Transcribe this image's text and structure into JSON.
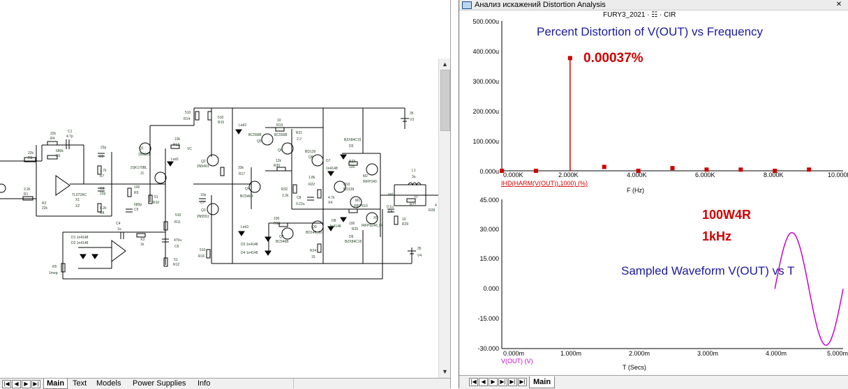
{
  "schematic": {
    "scroll_up_arrow": "▲",
    "scroll_down_arrow": "▼",
    "nav_first": "|◀",
    "nav_prev": "◀",
    "nav_next": "▶",
    "nav_last": "▶|",
    "tabs": [
      "Main",
      "Text",
      "Models",
      "Power Supplies",
      "Info"
    ],
    "labels": {
      "c1": "C1",
      "c1v": "4.7p",
      "r4": "22k",
      "r4n": "R4",
      "r6v": "680k",
      "r6": "R6",
      "r3v": "22k",
      "r3": "R3",
      "r1v": "2.2k",
      "r1": "R1",
      "r2": "R2",
      "r2v": "22k",
      "x1": "X1",
      "x2": "X2",
      "opamp1": "TL072AC",
      "c2": "22p",
      "c2n": "C2",
      "r7v": "2.7k",
      "r7": "R7",
      "c3": "C3",
      "c3v": "22p",
      "r8v": "8.2k",
      "r8": "R8",
      "q1": "Q1",
      "q1v": "2N5551",
      "j1v": "2SK170BL",
      "j1": "J1",
      "r9v": "100",
      "r9": "R9",
      "c5v": "680p",
      "c5": "C5",
      "r10v": "51",
      "r10": "R10",
      "r13v": "10k",
      "r13": "R13",
      "vc1": "VC",
      "led1": "Led1",
      "r14v": "510",
      "r14": "R14",
      "r15v": "510",
      "r15": "R15",
      "q2": "Q2",
      "q2v": "2N5401",
      "q3": "Q3",
      "q3v": "2N5551",
      "r16v": "510",
      "r16": "R16",
      "c7v": "10p",
      "c7": "C7",
      "r11v": "510",
      "r11": "R11",
      "c6v": "470u",
      "c6": "C6",
      "r12v": "51",
      "r12": "R12",
      "c4": "C4",
      "c4v": "1u",
      "x3": "X3",
      "x3v": "1k",
      "d1": "D1  1n4148",
      "d2": "D2  1n4148",
      "r5": "R5",
      "r5v": "1meg",
      "led2": "Led2",
      "q5": "Q5",
      "q5v": "BC556B",
      "r19v": "10",
      "r19": "R19",
      "r21": "R21",
      "r21v": "2.2",
      "q6": "Q6",
      "r17v": "33k",
      "r17": "R17",
      "q4": "Q4",
      "q4v": "BC546B",
      "r20v": "12k",
      "r20": "R20",
      "q8v": "BD139",
      "q8": "Q8",
      "r22v": "1.8k",
      "r22n": "R22",
      "c8": "C8",
      "c8v": "0.22u",
      "r32v": "2.2k",
      "r32": "R32",
      "x4": "X4",
      "x4v": "4.7k",
      "q7v": "BC546B",
      "q7": "Q7",
      "led3": "Led3",
      "d3": "D3   1n4148",
      "d4": "D4   1n4148",
      "r18v": "100",
      "r18": "R18",
      "q9": "Q9",
      "q9v": "BD140_16",
      "r24": "R24",
      "r24v": "15",
      "d5": "BZX84C15",
      "d5n": "D5",
      "r23n": "R23",
      "r23v": "100",
      "m2": "M2",
      "m2v": "IRFP240",
      "d7": "D7",
      "d7v": "1n4148",
      "q10": "Q10",
      "q10v": "BD139",
      "m1": "M1",
      "m1v": "IRFP510",
      "r25v": "100",
      "r25": "R25",
      "d6": "D6",
      "d6v": "BZX84C15",
      "d8": "D8",
      "d8v": "1n4148",
      "x5": "X5",
      "x5v": "IRFP9240_IR",
      "l1": "L1",
      "l1v": "3u",
      "r27v": "27",
      "r27": "R27",
      "r28": "R28",
      "out": "out",
      "c9": "C9",
      "c9v": "0.1u",
      "r29v": "10",
      "r29": "R29",
      "v3": "V3",
      "v3v": "35",
      "v4": "V4",
      "v4v": "35",
      "vc2": "VC",
      "four": "4"
    }
  },
  "analysis": {
    "window_title": "Анализ искажений Distortion Analysis",
    "close_glyph": "✕",
    "caption": "FURY3_2021 · ☷ · CIR",
    "tab": "Main",
    "plot_top": {
      "title": "Percent Distortion of V(OUT) vs Frequency",
      "annotation": "0.00037%",
      "trace_label": "IHD(HARM(V(OUT)),1000) (%)",
      "xlabel": "F (Hz)",
      "xticks": [
        "0.000K",
        "2.000K",
        "4.000K",
        "6.000K",
        "8.000K",
        "10.000K"
      ],
      "yticks": [
        "500.000u",
        "400.000u",
        "300.000u",
        "200.000u",
        "100.000u",
        "0.000u"
      ]
    },
    "plot_bottom": {
      "title": "Sampled Waveform  V(OUT) vs T",
      "annotation_1": "100W4R",
      "annotation_2": "1kHz",
      "trace_label": "V(OUT) (V)",
      "xlabel": "T (Secs)",
      "xticks": [
        "0.000m",
        "1.000m",
        "2.000m",
        "3.000m",
        "4.000m",
        "5.000m"
      ],
      "yticks": [
        "45.000",
        "30.000",
        "15.000",
        "0.000",
        "-15.000",
        "-30.000"
      ]
    }
  },
  "chart_data": [
    {
      "type": "bar",
      "title": "Percent Distortion of V(OUT) vs Frequency",
      "xlabel": "F (Hz)",
      "ylabel": "IHD(HARM(V(OUT)),1000) (%)",
      "x": [
        0,
        1000,
        2000,
        3000,
        4000,
        5000,
        6000,
        7000,
        8000,
        9000
      ],
      "values": [
        0,
        0,
        0.000376,
        1.3e-05,
        0,
        9e-06,
        4e-06,
        4e-06,
        0,
        4e-06
      ],
      "xlim": [
        0,
        10000
      ],
      "ylim": [
        0,
        0.0005
      ],
      "color": "#d00000",
      "grid": false
    },
    {
      "type": "line",
      "title": "Sampled Waveform  V(OUT) vs T",
      "xlabel": "T (Secs)",
      "series": [
        {
          "name": "V(OUT) (V)",
          "x": [
            0.004,
            0.00425,
            0.0045,
            0.00475,
            0.005
          ],
          "y": [
            0,
            28.3,
            0,
            -28.3,
            0
          ]
        }
      ],
      "xlim": [
        0,
        0.005
      ],
      "ylim": [
        -30,
        45
      ],
      "color": "#cc00cc",
      "grid": false
    }
  ]
}
